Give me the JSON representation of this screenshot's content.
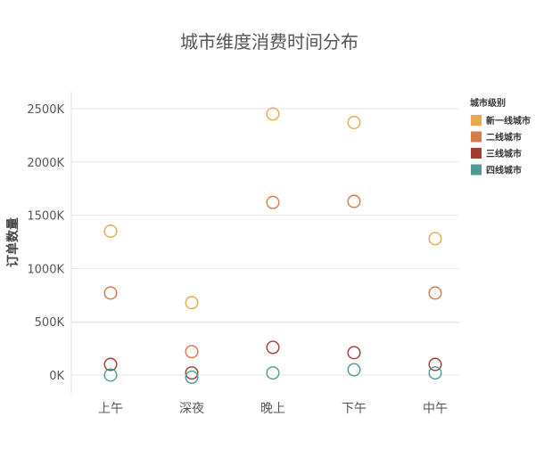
{
  "chart_data": {
    "type": "scatter",
    "title": "城市维度消费时间分布",
    "xlabel": "",
    "ylabel": "订单数量",
    "categories": [
      "上午",
      "深夜",
      "晚上",
      "下午",
      "中午"
    ],
    "y_ticks": [
      {
        "value": 0,
        "label": "0K"
      },
      {
        "value": 500,
        "label": "500K"
      },
      {
        "value": 1000,
        "label": "1000K"
      },
      {
        "value": 1500,
        "label": "1500K"
      },
      {
        "value": 2000,
        "label": "2000K"
      },
      {
        "value": 2500,
        "label": "2500K"
      }
    ],
    "legend": {
      "title": "城市级别",
      "position": "top-right"
    },
    "series": [
      {
        "name": "新一线城市",
        "color": "#E8A94E",
        "values": [
          1350,
          680,
          2450,
          2370,
          1280
        ]
      },
      {
        "name": "二线城市",
        "color": "#D9784A",
        "values": [
          770,
          220,
          1620,
          1630,
          770
        ]
      },
      {
        "name": "三线城市",
        "color": "#A33A2E",
        "values": [
          100,
          20,
          260,
          210,
          100
        ]
      },
      {
        "name": "四线城市",
        "color": "#4E9A94",
        "values": [
          0,
          -20,
          20,
          50,
          20
        ]
      }
    ]
  }
}
